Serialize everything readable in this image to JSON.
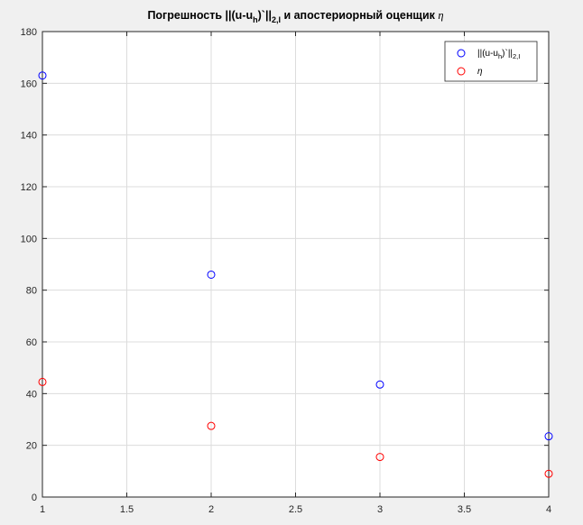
{
  "chart_data": {
    "type": "scatter",
    "title": {
      "main": "Погрешность ||(u-u",
      "sub1": "h",
      "mid": ")`||",
      "sub2": "2,I",
      "tail": " и апостериорный оценщик ",
      "greek": "η"
    },
    "xlabel": "",
    "ylabel": "",
    "xlim": [
      1,
      4
    ],
    "ylim": [
      0,
      180
    ],
    "x_ticks": [
      "1",
      "1.5",
      "2",
      "2.5",
      "3",
      "3.5",
      "4"
    ],
    "y_ticks": [
      "0",
      "20",
      "40",
      "60",
      "80",
      "100",
      "120",
      "140",
      "160",
      "180"
    ],
    "grid": true,
    "legend_position": "top-right",
    "series": [
      {
        "key": "error",
        "color": "#0000ff",
        "legend": {
          "main": "||(u-u",
          "sub1": "h",
          "mid": ")`||",
          "sub2": "2,I"
        },
        "x": [
          1,
          2,
          3,
          4
        ],
        "y": [
          163,
          86,
          43.5,
          23.5
        ]
      },
      {
        "key": "eta",
        "color": "#ff0000",
        "legend": {
          "greek": "η"
        },
        "x": [
          1,
          2,
          3,
          4
        ],
        "y": [
          44.5,
          27.5,
          15.5,
          9
        ]
      }
    ]
  }
}
